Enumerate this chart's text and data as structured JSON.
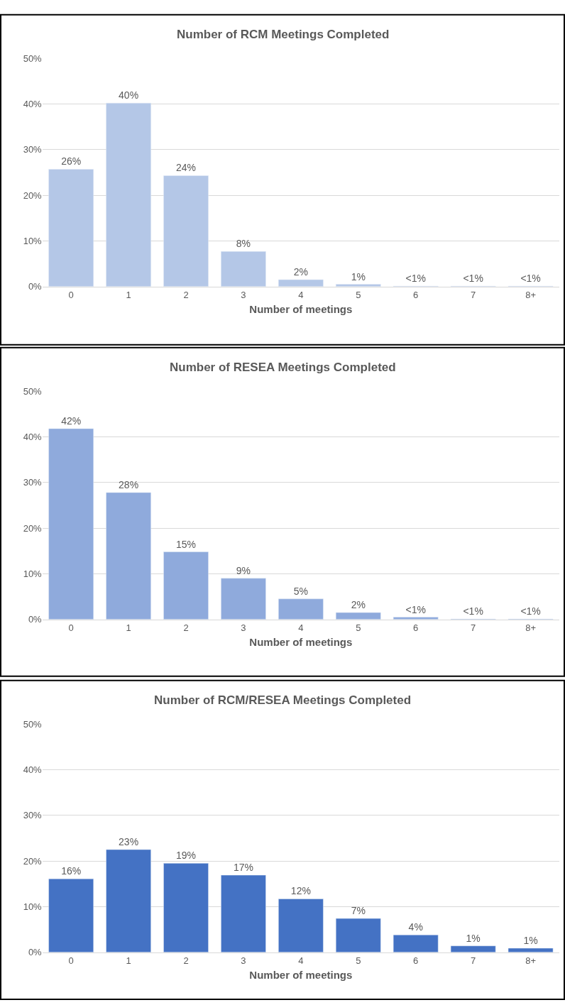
{
  "chart_data": [
    {
      "type": "bar",
      "title": "Number of RCM Meetings Completed",
      "xlabel": "Number of meetings",
      "categories": [
        "0",
        "1",
        "2",
        "3",
        "4",
        "5",
        "6",
        "7",
        "8+"
      ],
      "color": "#b4c7e7",
      "values": [
        25.7,
        40.2,
        24.3,
        7.7,
        1.5,
        0.5,
        0.1,
        0.1,
        0.1
      ],
      "value_labels": [
        "26%",
        "40%",
        "24%",
        "8%",
        "2%",
        "1%",
        "<1%",
        "<1%",
        "<1%"
      ],
      "ylim": [
        0,
        50
      ],
      "yticks": [
        {
          "value": 0,
          "label": "0%"
        },
        {
          "value": 10,
          "label": "10%"
        },
        {
          "value": 20,
          "label": "20%"
        },
        {
          "value": 30,
          "label": "30%"
        },
        {
          "value": 40,
          "label": "40%"
        },
        {
          "value": 50,
          "label": "50%"
        }
      ],
      "grid": "y",
      "legend": false
    },
    {
      "type": "bar",
      "title": "Number of RESEA Meetings Completed",
      "xlabel": "Number of meetings",
      "categories": [
        "0",
        "1",
        "2",
        "3",
        "4",
        "5",
        "6",
        "7",
        "8+"
      ],
      "color": "#8faadc",
      "values": [
        41.8,
        27.8,
        14.8,
        9.0,
        4.5,
        1.5,
        0.5,
        0.1,
        0.1
      ],
      "value_labels": [
        "42%",
        "28%",
        "15%",
        "9%",
        "5%",
        "2%",
        "<1%",
        "<1%",
        "<1%"
      ],
      "ylim": [
        0,
        50
      ],
      "yticks": [
        {
          "value": 0,
          "label": "0%"
        },
        {
          "value": 10,
          "label": "10%"
        },
        {
          "value": 20,
          "label": "20%"
        },
        {
          "value": 30,
          "label": "30%"
        },
        {
          "value": 40,
          "label": "40%"
        },
        {
          "value": 50,
          "label": "50%"
        }
      ],
      "grid": "y",
      "legend": false
    },
    {
      "type": "bar",
      "title": "Number of RCM/RESEA Meetings Completed",
      "xlabel": "Number of meetings",
      "categories": [
        "0",
        "1",
        "2",
        "3",
        "4",
        "5",
        "6",
        "7",
        "8+"
      ],
      "color": "#4472c4",
      "values": [
        16.1,
        22.5,
        19.5,
        16.9,
        11.7,
        7.4,
        3.8,
        1.4,
        0.9
      ],
      "value_labels": [
        "16%",
        "23%",
        "19%",
        "17%",
        "12%",
        "7%",
        "4%",
        "1%",
        "1%"
      ],
      "ylim": [
        0,
        50
      ],
      "yticks": [
        {
          "value": 0,
          "label": "0%"
        },
        {
          "value": 10,
          "label": "10%"
        },
        {
          "value": 20,
          "label": "20%"
        },
        {
          "value": 30,
          "label": "30%"
        },
        {
          "value": 40,
          "label": "40%"
        },
        {
          "value": 50,
          "label": "50%"
        }
      ],
      "grid": "y",
      "legend": false
    }
  ]
}
